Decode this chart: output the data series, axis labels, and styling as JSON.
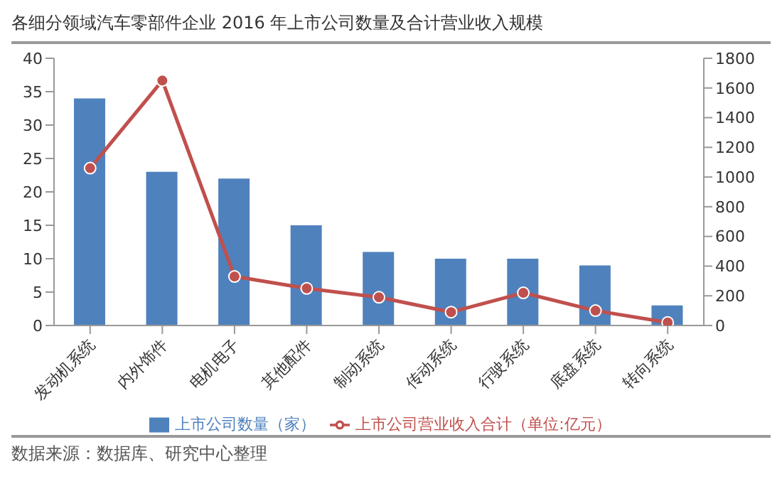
{
  "chart_data": {
    "type": "bar",
    "title": "各细分领域汽车零部件企业 2016 年上市公司数量及合计营业收入规模",
    "categories": [
      "发动机系统",
      "内外饰件",
      "电机电子",
      "其他配件",
      "制动系统",
      "传动系统",
      "行驶系统",
      "底盘系统",
      "转向系统"
    ],
    "series": [
      {
        "name": "上市公司数量（家）",
        "color": "#4f81bd",
        "values": [
          34,
          23,
          22,
          15,
          11,
          10,
          10,
          9,
          3
        ]
      },
      {
        "name": "上市公司营业收入合计（单位:亿元）",
        "type": "line",
        "axis": "y2",
        "color": "#c0504d",
        "marker": "circle",
        "values": [
          1060,
          1650,
          330,
          250,
          190,
          90,
          220,
          100,
          20
        ]
      }
    ],
    "ylim": [
      0,
      40
    ],
    "yticks": [
      0,
      5,
      10,
      15,
      20,
      25,
      30,
      35,
      40
    ],
    "y2lim": [
      0,
      1800
    ],
    "y2ticks": [
      0,
      200,
      400,
      600,
      800,
      1000,
      1200,
      1400,
      1600,
      1800
    ],
    "grid": false,
    "legend": "bottom",
    "annotations": [
      "数据来源：数据库、研究中心整理"
    ]
  }
}
